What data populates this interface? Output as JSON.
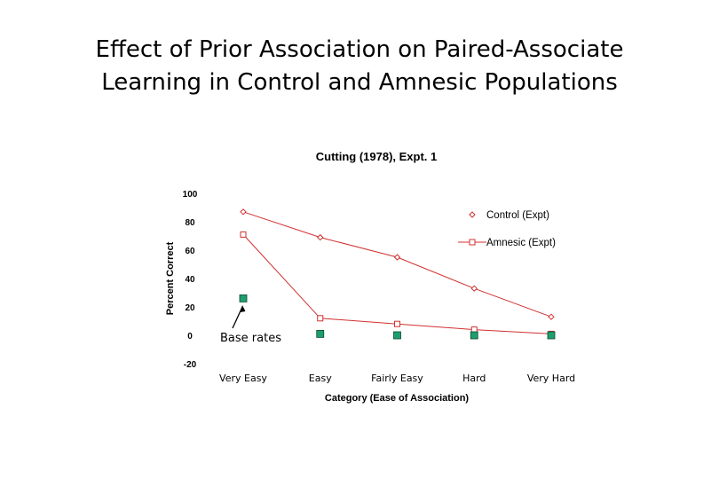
{
  "slide": {
    "title_line1": "Effect of Prior Association on Paired-Associate",
    "title_line2": "Learning in Control and Amnesic Populations"
  },
  "chart_data": {
    "type": "line",
    "title": "Cutting (1978), Expt. 1",
    "xlabel": "Category (Ease of Association)",
    "ylabel": "Percent Correct",
    "categories": [
      "Very Easy",
      "Easy",
      "Fairly Easy",
      "Hard",
      "Very Hard"
    ],
    "ylim": [
      -20,
      100
    ],
    "yticks": [
      -20,
      0,
      20,
      40,
      60,
      80,
      100
    ],
    "ytick_labels": [
      "-20",
      "0",
      "20",
      "40",
      "60",
      "80",
      "100"
    ],
    "grid": false,
    "legend_position": "top-right",
    "series": [
      {
        "name": "Control (Expt)",
        "marker": "diamond-open",
        "color": "#d03030",
        "values": [
          87,
          69,
          55,
          33,
          13
        ]
      },
      {
        "name": "Amnesic (Expt)",
        "marker": "square-open",
        "color": "#d03030",
        "values": [
          71,
          12,
          8,
          4,
          1
        ]
      },
      {
        "name": "Base rates",
        "marker": "square-filled",
        "color": "#1e9e6e",
        "values": [
          26,
          1,
          0,
          0,
          0
        ],
        "legend": false
      }
    ],
    "annotation": {
      "text": "Base rates"
    }
  }
}
